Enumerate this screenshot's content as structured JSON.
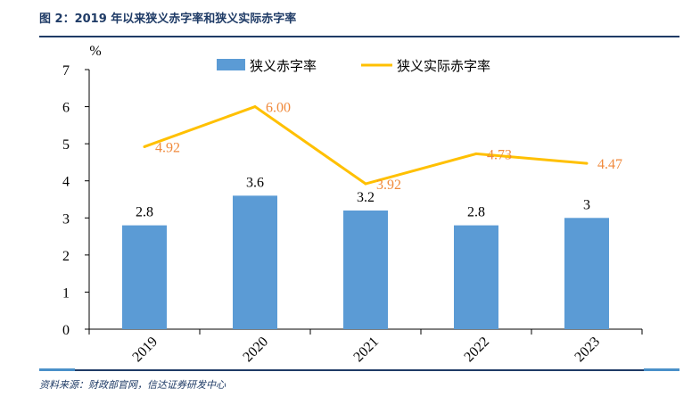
{
  "figure": {
    "title": "图 2：2019 年以来狭义赤字率和狭义实际赤字率",
    "source": "资料来源：财政部官网，信达证券研发中心"
  },
  "chart_data": {
    "type": "bar",
    "categories": [
      "2019",
      "2020",
      "2021",
      "2022",
      "2023"
    ],
    "unit": "%",
    "ylim": [
      0,
      7
    ],
    "yticks": [
      0,
      1,
      2,
      3,
      4,
      5,
      6,
      7
    ],
    "grid": false,
    "legend_position": "top",
    "series": [
      {
        "name": "狭义赤字率",
        "kind": "bar",
        "color": "#5b9bd5",
        "values": [
          2.8,
          3.6,
          3.2,
          2.8,
          3
        ],
        "labels": [
          "2.8",
          "3.6",
          "3.2",
          "2.8",
          "3"
        ]
      },
      {
        "name": "狭义实际赤字率",
        "kind": "line",
        "color": "#ffc000",
        "label_color": "#f08a3c",
        "values": [
          4.92,
          6.0,
          3.92,
          4.73,
          4.47
        ],
        "labels": [
          "4.92",
          "6.00",
          "3.92",
          "4.73",
          "4.47"
        ]
      }
    ]
  }
}
